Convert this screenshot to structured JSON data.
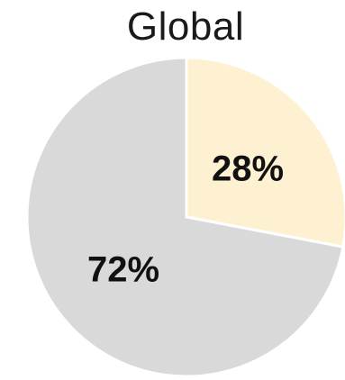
{
  "chart_data": {
    "type": "pie",
    "title": "Global",
    "slices": [
      {
        "label": "28%",
        "value": 28,
        "color": "#fdf1d2"
      },
      {
        "label": "72%",
        "value": 72,
        "color": "#d9d9d9"
      }
    ]
  }
}
